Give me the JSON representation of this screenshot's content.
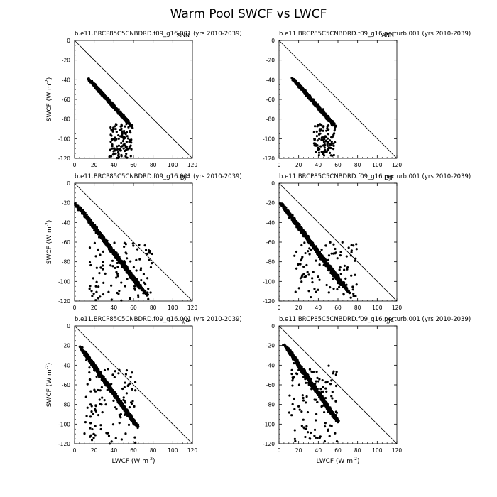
{
  "figure": {
    "title": "Warm Pool SWCF vs LWCF"
  },
  "chart_data": [
    {
      "type": "scatter",
      "panel": "left-top",
      "case": "b.e11.BRCP85C5CNBDRD.f09_g16.001 (yrs 2010-2039)",
      "season": "ANN",
      "xlabel": "",
      "ylabel": "SWCF (W m^-2)",
      "xlim": [
        0,
        120
      ],
      "ylim": [
        -120,
        0
      ],
      "xticks": [
        "0",
        "20",
        "40",
        "60",
        "80",
        "100",
        "120"
      ],
      "yticks": [
        "0",
        "-20",
        "-40",
        "-60",
        "-80",
        "-100",
        "-120"
      ],
      "reference_line": [
        [
          0,
          0
        ],
        [
          120,
          -120
        ]
      ],
      "dense_band": {
        "x_start": 17,
        "x_end": 56,
        "y_start": -42,
        "y_end": -85,
        "half_width": 5
      },
      "tail": {
        "x": [
          35,
          58
        ],
        "y": [
          -85,
          -120
        ]
      },
      "series": [
        {
          "points": [
            [
              17,
              -42
            ],
            [
              20,
              -46
            ],
            [
              22,
              -48
            ],
            [
              25,
              -52
            ],
            [
              30,
              -55
            ],
            [
              35,
              -60
            ],
            [
              40,
              -65
            ],
            [
              45,
              -70
            ],
            [
              50,
              -76
            ],
            [
              55,
              -82
            ],
            [
              40,
              -90
            ],
            [
              45,
              -100
            ],
            [
              50,
              -110
            ],
            [
              52,
              -118
            ]
          ]
        }
      ]
    },
    {
      "type": "scatter",
      "panel": "right-top",
      "case": "b.e11.BRCP85C5CNBDRD.f09_g16.perturb.001 (yrs 2010-2039)",
      "season": "ANN",
      "xlabel": "",
      "ylabel": "",
      "xlim": [
        0,
        120
      ],
      "ylim": [
        -120,
        0
      ],
      "xticks": [
        "0",
        "20",
        "40",
        "60",
        "80",
        "100",
        "120"
      ],
      "yticks": [
        "0",
        "-20",
        "-40",
        "-60",
        "-80",
        "-100",
        "-120"
      ],
      "reference_line": [
        [
          0,
          0
        ],
        [
          120,
          -120
        ]
      ],
      "dense_band": {
        "x_start": 17,
        "x_end": 55,
        "y_start": -42,
        "y_end": -85,
        "half_width": 5
      },
      "tail": {
        "x": [
          35,
          57
        ],
        "y": [
          -85,
          -118
        ]
      },
      "series": [
        {
          "points": [
            [
              17,
              -42
            ],
            [
              20,
              -46
            ],
            [
              25,
              -50
            ],
            [
              30,
              -56
            ],
            [
              35,
              -60
            ],
            [
              40,
              -65
            ],
            [
              45,
              -70
            ],
            [
              50,
              -77
            ],
            [
              55,
              -83
            ],
            [
              42,
              -92
            ],
            [
              48,
              -102
            ],
            [
              50,
              -110
            ],
            [
              53,
              -117
            ]
          ]
        }
      ]
    },
    {
      "type": "scatter",
      "panel": "left-middle",
      "case": "b.e11.BRCP85C5CNBDRD.f09_g16.001 (yrs 2010-2039)",
      "season": "DJF",
      "xlabel": "",
      "ylabel": "SWCF (W m^-2)",
      "xlim": [
        0,
        120
      ],
      "ylim": [
        -120,
        0
      ],
      "xticks": [
        "0",
        "20",
        "40",
        "60",
        "80",
        "100",
        "120"
      ],
      "yticks": [
        "0",
        "-20",
        "-40",
        "-60",
        "-80",
        "-100",
        "-120"
      ],
      "reference_line": [
        [
          0,
          0
        ],
        [
          120,
          -120
        ]
      ],
      "dense_band": {
        "x_start": 5,
        "x_end": 70,
        "y_start": -25,
        "y_end": -110,
        "half_width": 8
      },
      "tail": {
        "x": [
          15,
          80
        ],
        "y": [
          -60,
          -120
        ]
      },
      "series": [
        {
          "points": [
            [
              5,
              -25
            ],
            [
              10,
              -32
            ],
            [
              15,
              -40
            ],
            [
              20,
              -48
            ],
            [
              25,
              -55
            ],
            [
              30,
              -60
            ],
            [
              35,
              -66
            ],
            [
              40,
              -72
            ],
            [
              45,
              -78
            ],
            [
              50,
              -85
            ],
            [
              55,
              -92
            ],
            [
              60,
              -98
            ],
            [
              65,
              -105
            ],
            [
              70,
              -112
            ],
            [
              75,
              -118
            ]
          ]
        }
      ]
    },
    {
      "type": "scatter",
      "panel": "right-middle",
      "case": "b.e11.BRCP85C5CNBDRD.f09_g16.perturb.001 (yrs 2010-2039)",
      "season": "DJF",
      "xlabel": "",
      "ylabel": "",
      "xlim": [
        0,
        120
      ],
      "ylim": [
        -120,
        0
      ],
      "xticks": [
        "0",
        "20",
        "40",
        "60",
        "80",
        "100",
        "120"
      ],
      "yticks": [
        "0",
        "-20",
        "-40",
        "-60",
        "-80",
        "-100",
        "-120"
      ],
      "reference_line": [
        [
          0,
          0
        ],
        [
          120,
          -120
        ]
      ],
      "dense_band": {
        "x_start": 5,
        "x_end": 68,
        "y_start": -24,
        "y_end": -108,
        "half_width": 8
      },
      "tail": {
        "x": [
          15,
          80
        ],
        "y": [
          -60,
          -118
        ]
      },
      "series": [
        {
          "points": [
            [
              5,
              -24
            ],
            [
              10,
              -31
            ],
            [
              15,
              -39
            ],
            [
              20,
              -47
            ],
            [
              25,
              -54
            ],
            [
              30,
              -60
            ],
            [
              35,
              -66
            ],
            [
              40,
              -72
            ],
            [
              45,
              -78
            ],
            [
              50,
              -85
            ],
            [
              55,
              -92
            ],
            [
              60,
              -98
            ],
            [
              65,
              -104
            ],
            [
              70,
              -110
            ],
            [
              78,
              -115
            ]
          ]
        }
      ]
    },
    {
      "type": "scatter",
      "panel": "left-bottom",
      "case": "b.e11.BRCP85C5CNBDRD.f09_g16.001 (yrs 2010-2039)",
      "season": "JJA",
      "xlabel": "LWCF (W m^-2)",
      "ylabel": "SWCF (W m^-2)",
      "xlim": [
        0,
        120
      ],
      "ylim": [
        -120,
        0
      ],
      "xticks": [
        "0",
        "20",
        "40",
        "60",
        "80",
        "100",
        "120"
      ],
      "yticks": [
        "0",
        "-20",
        "-40",
        "-60",
        "-80",
        "-100",
        "-120"
      ],
      "reference_line": [
        [
          0,
          0
        ],
        [
          120,
          -120
        ]
      ],
      "dense_band": {
        "x_start": 8,
        "x_end": 62,
        "y_start": -24,
        "y_end": -100,
        "half_width": 5
      },
      "tail": {
        "x": [
          10,
          62
        ],
        "y": [
          -40,
          -120
        ]
      },
      "series": [
        {
          "points": [
            [
              8,
              -22
            ],
            [
              10,
              -30
            ],
            [
              12,
              -35
            ],
            [
              20,
              -45
            ],
            [
              25,
              -52
            ],
            [
              30,
              -58
            ],
            [
              35,
              -63
            ],
            [
              40,
              -69
            ],
            [
              45,
              -75
            ],
            [
              50,
              -82
            ],
            [
              55,
              -88
            ],
            [
              60,
              -95
            ],
            [
              62,
              -100
            ]
          ]
        }
      ]
    },
    {
      "type": "scatter",
      "panel": "right-bottom",
      "case": "b.e11.BRCP85C5CNBDRD.f09_g16.perturb.001 (yrs 2010-2039)",
      "season": "JJA",
      "xlabel": "LWCF (W m^-2)",
      "ylabel": "",
      "xlim": [
        0,
        120
      ],
      "ylim": [
        -120,
        0
      ],
      "xticks": [
        "0",
        "20",
        "40",
        "60",
        "80",
        "100",
        "120"
      ],
      "yticks": [
        "0",
        "-20",
        "-40",
        "-60",
        "-80",
        "-100",
        "-120"
      ],
      "reference_line": [
        [
          0,
          0
        ],
        [
          120,
          -120
        ]
      ],
      "dense_band": {
        "x_start": 8,
        "x_end": 58,
        "y_start": -22,
        "y_end": -95,
        "half_width": 5
      },
      "tail": {
        "x": [
          10,
          60
        ],
        "y": [
          -40,
          -118
        ]
      },
      "series": [
        {
          "points": [
            [
              7,
              -21
            ],
            [
              10,
              -28
            ],
            [
              15,
              -38
            ],
            [
              20,
              -45
            ],
            [
              25,
              -52
            ],
            [
              30,
              -58
            ],
            [
              35,
              -63
            ],
            [
              40,
              -68
            ],
            [
              45,
              -74
            ],
            [
              50,
              -80
            ],
            [
              55,
              -88
            ],
            [
              58,
              -95
            ]
          ]
        }
      ]
    }
  ]
}
